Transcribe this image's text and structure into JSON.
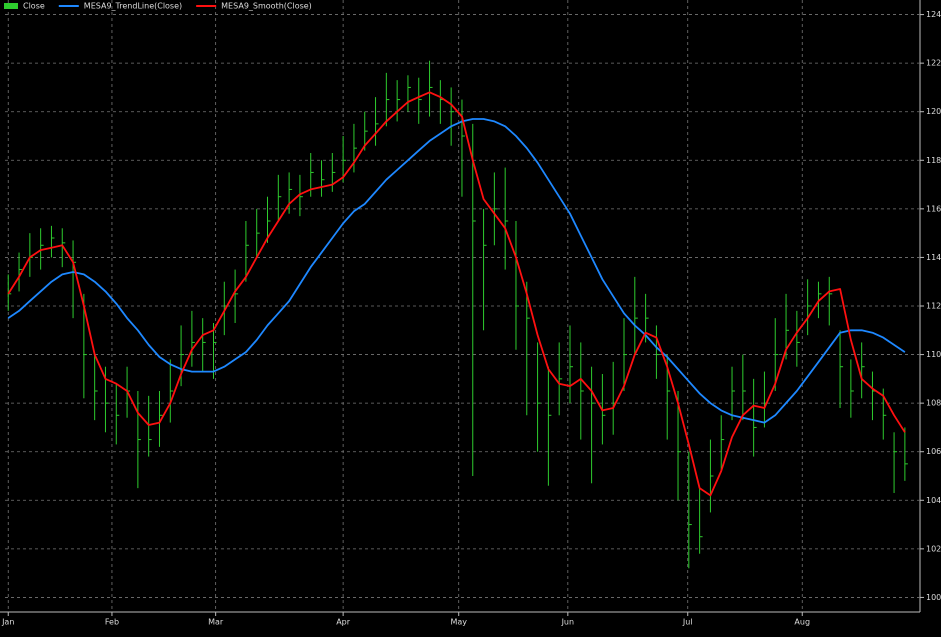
{
  "chart_data": {
    "type": "ohlc",
    "bars": {
      "name": "Close",
      "color": "#2ecc2e",
      "high": [
        113.3,
        114.2,
        115,
        115.2,
        115.3,
        115.2,
        114.7,
        112.5,
        110,
        109.5,
        108.8,
        109.5,
        108.5,
        108.3,
        108.5,
        109.8,
        111.2,
        111.8,
        111.5,
        111.3,
        113,
        113.5,
        115.5,
        116,
        116.5,
        117.4,
        117.5,
        117.4,
        118.3,
        118,
        118.3,
        119,
        119.5,
        120,
        120.6,
        121.6,
        121.3,
        121.5,
        121.4,
        122.1,
        121.3,
        121,
        120.5,
        119.5,
        116,
        117.5,
        117.7,
        115.5,
        113,
        110.5,
        109.5,
        110.5,
        111.2,
        110.5,
        109.5,
        109.2,
        109.7,
        111.5,
        113.2,
        112.5,
        111.2,
        110,
        108.5,
        106,
        104.5,
        106.5,
        107.5,
        109.5,
        110,
        109,
        109.3,
        111.5,
        112.5,
        111.8,
        113.1,
        113,
        113.2,
        111,
        109.8,
        110.5,
        109.3,
        108.6,
        106.8,
        107
      ],
      "low": [
        111.8,
        112.6,
        113.2,
        113.5,
        114,
        113.6,
        111.5,
        108.2,
        107.3,
        106.8,
        106.3,
        107.4,
        104.5,
        105.8,
        106.2,
        107.2,
        108.7,
        109.5,
        109.3,
        109,
        110.8,
        111.3,
        113,
        114,
        114.6,
        115.5,
        115.8,
        115.7,
        116.5,
        116.5,
        116.7,
        117.1,
        117.5,
        118.4,
        118.6,
        119.4,
        119.6,
        120,
        119.5,
        119.8,
        119.5,
        118.6,
        116.5,
        105,
        111,
        114.5,
        113.5,
        110.2,
        107.5,
        106,
        104.6,
        107.5,
        108,
        106.5,
        104.7,
        106.3,
        106.7,
        108.5,
        110,
        110.5,
        109,
        106.5,
        104,
        101.2,
        101.8,
        103.5,
        105.2,
        107.3,
        107.3,
        105.8,
        107,
        108.5,
        109.8,
        109.5,
        110.8,
        111.5,
        111.2,
        107.8,
        107.4,
        108.2,
        107.3,
        106.5,
        104.3,
        104.8
      ],
      "close": [
        112.5,
        113.5,
        114,
        114.5,
        114.8,
        114.6,
        113.8,
        110,
        108.5,
        108,
        107.5,
        108.5,
        106.5,
        106.5,
        107.5,
        108.5,
        110,
        110.5,
        110.5,
        110.5,
        112,
        112.5,
        114.5,
        115,
        115.5,
        116.5,
        116.8,
        116.5,
        117.5,
        117.2,
        117.5,
        118,
        118.5,
        119.2,
        119.5,
        120.5,
        120.5,
        121,
        120.5,
        121,
        120.5,
        120,
        119,
        115.5,
        114.5,
        116,
        115.5,
        112,
        111.5,
        108,
        107.5,
        109,
        109.5,
        108.5,
        108,
        107.5,
        108,
        110,
        111.5,
        111.5,
        110,
        108.5,
        106,
        103,
        102.5,
        105,
        106.5,
        108.5,
        108.5,
        107,
        108,
        110,
        111,
        110.5,
        112,
        112.5,
        112.5,
        109.5,
        108.5,
        109.5,
        108.5,
        107.5,
        106,
        105.5
      ]
    },
    "series": [
      {
        "name": "MESA9_TrendLine(Close)",
        "color": "#1e88ff",
        "values": [
          111.5,
          111.8,
          112.2,
          112.6,
          113,
          113.3,
          113.4,
          113.3,
          113,
          112.6,
          112.1,
          111.5,
          111,
          110.4,
          109.9,
          109.6,
          109.4,
          109.3,
          109.3,
          109.3,
          109.5,
          109.8,
          110.1,
          110.6,
          111.2,
          111.7,
          112.2,
          112.9,
          113.6,
          114.2,
          114.8,
          115.4,
          115.9,
          116.2,
          116.7,
          117.2,
          117.6,
          118,
          118.4,
          118.8,
          119.1,
          119.4,
          119.6,
          119.7,
          119.7,
          119.6,
          119.4,
          119,
          118.5,
          117.9,
          117.2,
          116.5,
          115.8,
          114.9,
          114,
          113.1,
          112.4,
          111.7,
          111.2,
          110.8,
          110.3,
          109.9,
          109.4,
          108.9,
          108.4,
          108,
          107.7,
          107.5,
          107.4,
          107.3,
          107.2,
          107.5,
          108,
          108.5,
          109.1,
          109.7,
          110.3,
          110.9,
          111,
          111,
          110.9,
          110.7,
          110.4,
          110.1
        ]
      },
      {
        "name": "MESA9_Smooth(Close)",
        "color": "#ff1010",
        "values": [
          112.5,
          113.2,
          114,
          114.3,
          114.4,
          114.5,
          113.8,
          112,
          110,
          109,
          108.8,
          108.5,
          107.6,
          107.1,
          107.2,
          108,
          109.2,
          110.2,
          110.8,
          111,
          111.8,
          112.6,
          113.2,
          114,
          114.8,
          115.5,
          116.2,
          116.6,
          116.8,
          116.9,
          117,
          117.3,
          117.9,
          118.6,
          119.1,
          119.6,
          120,
          120.4,
          120.6,
          120.8,
          120.6,
          120.3,
          119.8,
          118,
          116.4,
          115.8,
          115.2,
          114,
          112.5,
          110.8,
          109.4,
          108.8,
          108.7,
          109,
          108.5,
          107.7,
          107.8,
          108.7,
          110,
          110.9,
          110.7,
          109.5,
          108,
          106.3,
          104.5,
          104.2,
          105.2,
          106.6,
          107.5,
          107.9,
          107.8,
          108.8,
          110.2,
          110.9,
          111.5,
          112.2,
          112.6,
          112.7,
          110.6,
          109,
          108.6,
          108.3,
          107.5,
          106.8
        ]
      }
    ],
    "xlim": [
      -0.3,
      84.4
    ],
    "xticks": [
      {
        "value": 0,
        "label": "Jan"
      },
      {
        "value": 9.6,
        "label": "Feb"
      },
      {
        "value": 19.2,
        "label": "Mar"
      },
      {
        "value": 31,
        "label": "Apr"
      },
      {
        "value": 41.7,
        "label": "May"
      },
      {
        "value": 51.8,
        "label": "Jun"
      },
      {
        "value": 62.9,
        "label": "Jul"
      },
      {
        "value": 73.5,
        "label": "Aug"
      }
    ],
    "ylim": [
      99.4,
      124.6
    ],
    "yticks": [
      100,
      102,
      104,
      106,
      108,
      110,
      112,
      114,
      116,
      118,
      120,
      122,
      124
    ],
    "grid": true
  }
}
